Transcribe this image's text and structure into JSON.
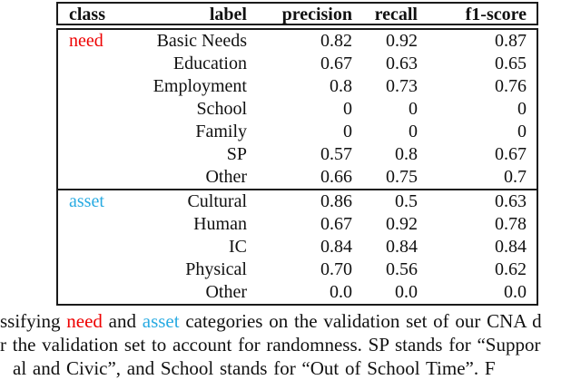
{
  "colors": {
    "need": "#ee0000",
    "asset": "#29abe2",
    "text": "#111111",
    "border": "#1a1a1a"
  },
  "table": {
    "headers": [
      "class",
      "label",
      "precision",
      "recall",
      "f1-score"
    ],
    "sections": [
      {
        "class": "need",
        "rows": [
          {
            "label": "Basic Needs",
            "precision": "0.82",
            "recall": "0.92",
            "f1": "0.87"
          },
          {
            "label": "Education",
            "precision": "0.67",
            "recall": "0.63",
            "f1": "0.65"
          },
          {
            "label": "Employment",
            "precision": "0.8",
            "recall": "0.73",
            "f1": "0.76"
          },
          {
            "label": "School",
            "precision": "0",
            "recall": "0",
            "f1": "0"
          },
          {
            "label": "Family",
            "precision": "0",
            "recall": "0",
            "f1": "0"
          },
          {
            "label": "SP",
            "precision": "0.57",
            "recall": "0.8",
            "f1": "0.67"
          },
          {
            "label": "Other",
            "precision": "0.66",
            "recall": "0.75",
            "f1": "0.7"
          }
        ]
      },
      {
        "class": "asset",
        "rows": [
          {
            "label": "Cultural",
            "precision": "0.86",
            "recall": "0.5",
            "f1": "0.63"
          },
          {
            "label": "Human",
            "precision": "0.67",
            "recall": "0.92",
            "f1": "0.78"
          },
          {
            "label": "IC",
            "precision": "0.84",
            "recall": "0.84",
            "f1": "0.84"
          },
          {
            "label": "Physical",
            "precision": "0.70",
            "recall": "0.56",
            "f1": "0.62"
          },
          {
            "label": "Other",
            "precision": "0.0",
            "recall": "0.0",
            "f1": "0.0"
          }
        ]
      }
    ]
  },
  "caption": {
    "line1_pre": "ssifying ",
    "line1_need": "need",
    "line1_mid": " and ",
    "line1_asset": "asset",
    "line1_post": " categories on the validation set of our CNA d",
    "line2": "r the validation set to account for randomness. SP stands for “Suppor",
    "line3": "al and Civic”, and School stands for “Out of School Time”. F"
  },
  "chart_data": {
    "type": "table",
    "title": "",
    "columns": [
      "class",
      "label",
      "precision",
      "recall",
      "f1-score"
    ],
    "rows": [
      [
        "need",
        "Basic Needs",
        0.82,
        0.92,
        0.87
      ],
      [
        "need",
        "Education",
        0.67,
        0.63,
        0.65
      ],
      [
        "need",
        "Employment",
        0.8,
        0.73,
        0.76
      ],
      [
        "need",
        "School",
        0,
        0,
        0
      ],
      [
        "need",
        "Family",
        0,
        0,
        0
      ],
      [
        "need",
        "SP",
        0.57,
        0.8,
        0.67
      ],
      [
        "need",
        "Other",
        0.66,
        0.75,
        0.7
      ],
      [
        "asset",
        "Cultural",
        0.86,
        0.5,
        0.63
      ],
      [
        "asset",
        "Human",
        0.67,
        0.92,
        0.78
      ],
      [
        "asset",
        "IC",
        0.84,
        0.84,
        0.84
      ],
      [
        "asset",
        "Physical",
        0.7,
        0.56,
        0.62
      ],
      [
        "asset",
        "Other",
        0.0,
        0.0,
        0.0
      ]
    ]
  }
}
